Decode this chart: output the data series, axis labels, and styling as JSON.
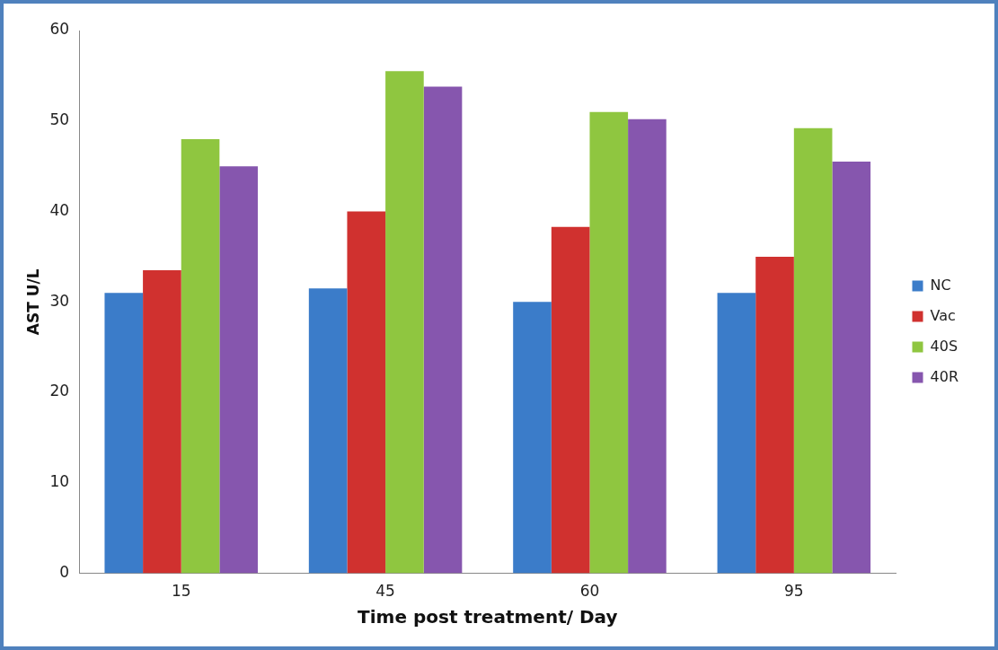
{
  "chart_data": {
    "type": "bar",
    "xlabel": "Time post treatment/ Day",
    "ylabel": "AST U/L",
    "categories": [
      "15",
      "45",
      "60",
      "95"
    ],
    "series": [
      {
        "name": "NC",
        "color": "#3b7cc9",
        "values": [
          31,
          31.5,
          30,
          31
        ]
      },
      {
        "name": "Vac",
        "color": "#d0312f",
        "values": [
          33.5,
          40,
          38.3,
          35
        ]
      },
      {
        "name": "40S",
        "color": "#8fc640",
        "values": [
          48,
          55.5,
          51,
          49.2
        ]
      },
      {
        "name": "40R",
        "color": "#8656ae",
        "values": [
          45,
          53.8,
          50.2,
          45.5
        ]
      }
    ],
    "ylim": [
      0,
      60
    ],
    "yticks": [
      0,
      10,
      20,
      30,
      40,
      50,
      60
    ],
    "grid": false,
    "legend": "right"
  }
}
